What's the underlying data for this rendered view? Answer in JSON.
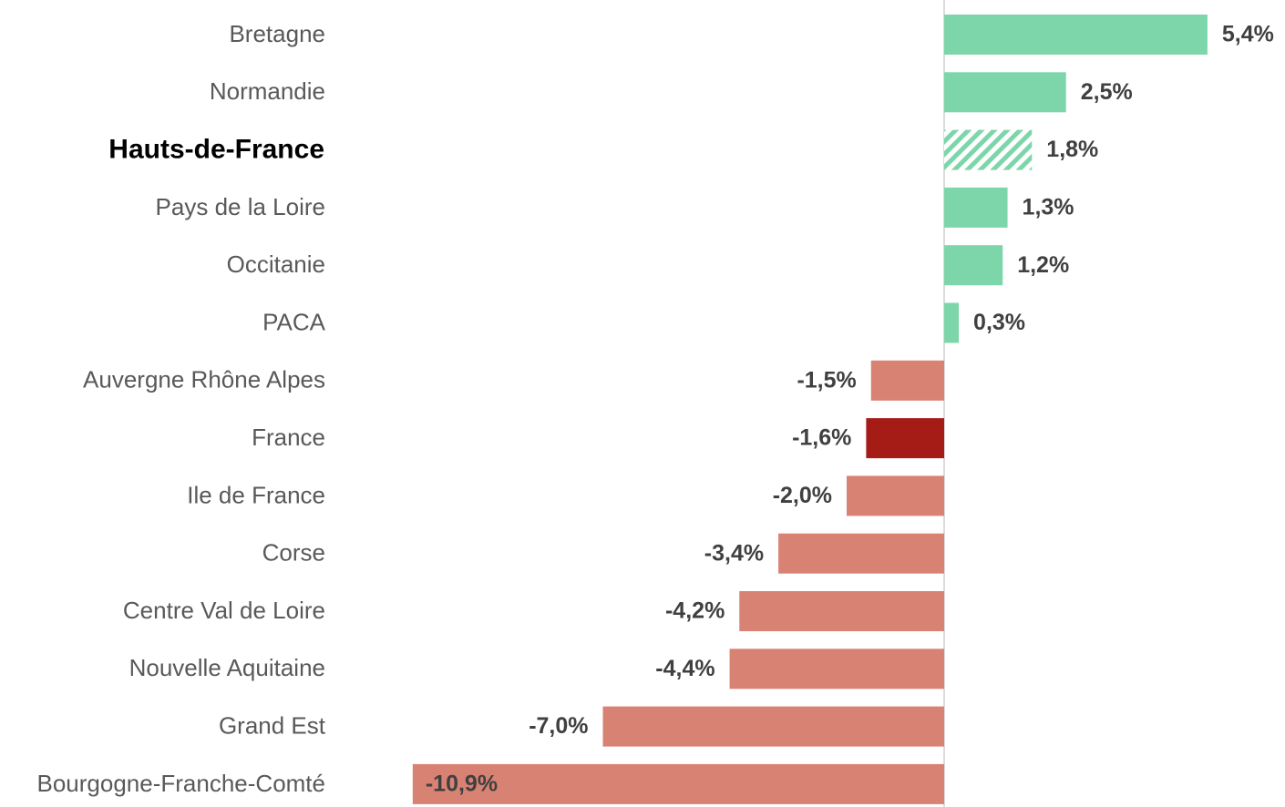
{
  "chart_data": {
    "type": "hbar",
    "categories": [
      "Bretagne",
      "Normandie",
      "Hauts-de-France",
      "Pays de la Loire",
      "Occitanie",
      "PACA",
      "Auvergne Rhône Alpes",
      "France",
      "Ile de France",
      "Corse",
      "Centre Val de Loire",
      "Nouvelle Aquitaine",
      "Grand Est",
      "Bourgogne-Franche-Comté"
    ],
    "values": [
      5.4,
      2.5,
      1.8,
      1.3,
      1.2,
      0.3,
      -1.5,
      -1.6,
      -2.0,
      -3.4,
      -4.2,
      -4.4,
      -7.0,
      -10.9
    ],
    "value_labels": [
      "5,4%",
      "2,5%",
      "1,8%",
      "1,3%",
      "1,2%",
      "0,3%",
      "-1,5%",
      "-1,6%",
      "-2,0%",
      "-3,4%",
      "-4,2%",
      "-4,4%",
      "-7,0%",
      "-10,9%"
    ],
    "colors": [
      "#7dd6aa",
      "#7dd6aa",
      "#7dd6aa",
      "#7dd6aa",
      "#7dd6aa",
      "#7dd6aa",
      "#d88273",
      "#a51c17",
      "#d88273",
      "#d88273",
      "#d88273",
      "#d88273",
      "#d88273",
      "#d88273"
    ],
    "highlight_index": 2,
    "xlim": [
      -11,
      6
    ]
  }
}
